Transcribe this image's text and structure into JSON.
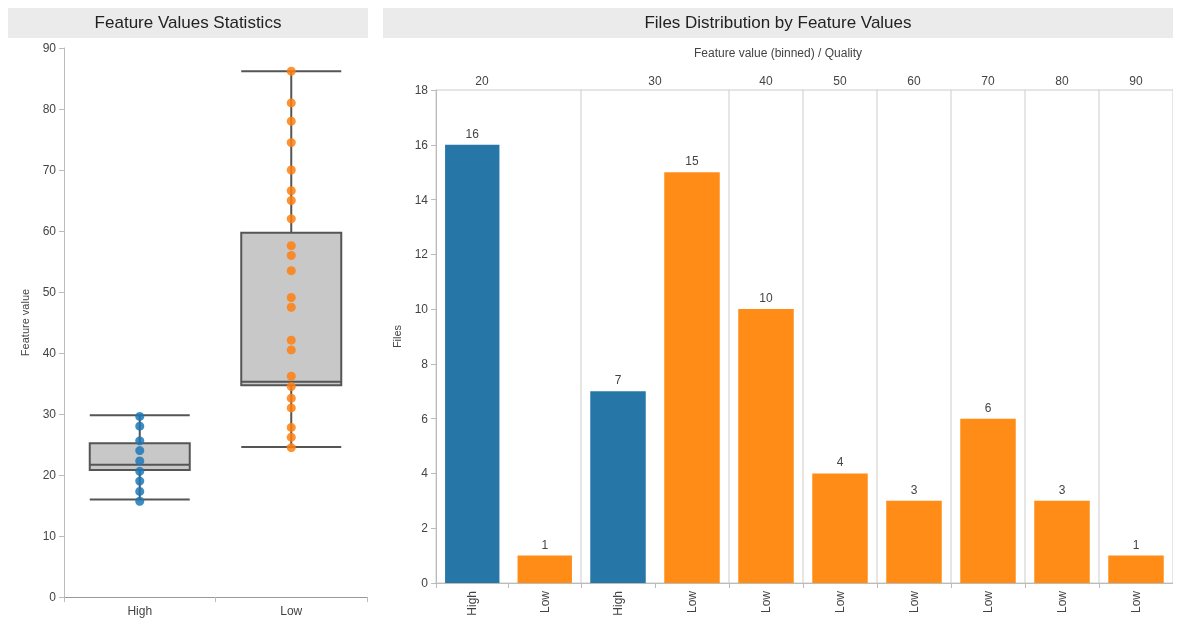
{
  "chart_data": [
    {
      "type": "box",
      "title": "Feature Values Statistics",
      "ylabel": "Feature value",
      "categories": [
        "High",
        "Low"
      ],
      "ylim": [
        0,
        90
      ],
      "yticks": [
        0,
        10,
        20,
        30,
        40,
        50,
        60,
        70,
        80,
        90
      ],
      "marker": "circle",
      "series": [
        {
          "type": "box",
          "color": "#c8c8c8",
          "boxes": [
            {
              "low": 16,
              "q1": 20.8,
              "median": 21.7,
              "q3": 25.2,
              "high": 29.8
            },
            {
              "low": 24.6,
              "q1": 34.7,
              "median": 35.3,
              "q3": 59.7,
              "high": 86.2
            }
          ]
        },
        {
          "type": "scatter",
          "color": "#1f77b4",
          "x": [
            "High",
            "High",
            "High",
            "High",
            "High",
            "High",
            "High",
            "High",
            "High"
          ],
          "values": [
            15.7,
            17.3,
            19,
            20.6,
            22.3,
            24,
            25.6,
            28,
            29.6
          ]
        },
        {
          "type": "scatter",
          "color": "#ff7f0e",
          "x": [
            "Low",
            "Low",
            "Low",
            "Low",
            "Low",
            "Low",
            "Low",
            "Low",
            "Low",
            "Low",
            "Low",
            "Low",
            "Low",
            "Low",
            "Low",
            "Low",
            "Low",
            "Low",
            "Low",
            "Low",
            "Low",
            "Low"
          ],
          "values": [
            24.5,
            26.2,
            27.8,
            31,
            32.6,
            34.5,
            36.2,
            40.5,
            42.1,
            47.5,
            49.1,
            53.5,
            56,
            57.6,
            62,
            65,
            66.6,
            70,
            74.5,
            78,
            81,
            86.2
          ]
        }
      ]
    },
    {
      "type": "other",
      "title": "Files Distribution by Feature Values",
      "subtitle": "Feature value (binned) / Quality"
    },
    {
      "type": "bar",
      "title": "20",
      "ylabel": "Files",
      "categories": [
        "High",
        "Low"
      ],
      "values": [
        16,
        1
      ],
      "colors": [
        "#2677a8",
        "#ff8c17"
      ],
      "ylim": [
        0,
        18
      ],
      "yticks": [
        0,
        2,
        4,
        6,
        8,
        10,
        12,
        14,
        16,
        18
      ],
      "data_labels": true
    },
    {
      "type": "bar",
      "title": "30",
      "categories": [
        "High",
        "Low"
      ],
      "values": [
        7,
        15
      ],
      "colors": [
        "#2677a8",
        "#ff8c17"
      ],
      "ylim": [
        0,
        18
      ],
      "yticks": [
        0,
        2,
        4,
        6,
        8,
        10,
        12,
        14,
        16,
        18
      ],
      "data_labels": true,
      "tick_labels": "x"
    },
    {
      "type": "bar",
      "title": "40",
      "categories": [
        "Low"
      ],
      "values": [
        10
      ],
      "colors": [
        "#ff8c17"
      ],
      "ylim": [
        0,
        18
      ],
      "yticks": [
        0,
        2,
        4,
        6,
        8,
        10,
        12,
        14,
        16,
        18
      ],
      "data_labels": true,
      "tick_labels": "x"
    },
    {
      "type": "bar",
      "title": "50",
      "categories": [
        "Low"
      ],
      "values": [
        4
      ],
      "colors": [
        "#ff8c17"
      ],
      "ylim": [
        0,
        18
      ],
      "yticks": [
        0,
        2,
        4,
        6,
        8,
        10,
        12,
        14,
        16,
        18
      ],
      "data_labels": true,
      "tick_labels": "x"
    },
    {
      "type": "bar",
      "title": "60",
      "categories": [
        "Low"
      ],
      "values": [
        3
      ],
      "colors": [
        "#ff8c17"
      ],
      "ylim": [
        0,
        18
      ],
      "yticks": [
        0,
        2,
        4,
        6,
        8,
        10,
        12,
        14,
        16,
        18
      ],
      "data_labels": true,
      "tick_labels": "x"
    },
    {
      "type": "bar",
      "title": "70",
      "categories": [
        "Low"
      ],
      "values": [
        6
      ],
      "colors": [
        "#ff8c17"
      ],
      "ylim": [
        0,
        18
      ],
      "yticks": [
        0,
        2,
        4,
        6,
        8,
        10,
        12,
        14,
        16,
        18
      ],
      "data_labels": true,
      "tick_labels": "x"
    },
    {
      "type": "bar",
      "title": "80",
      "categories": [
        "Low"
      ],
      "values": [
        3
      ],
      "colors": [
        "#ff8c17"
      ],
      "ylim": [
        0,
        18
      ],
      "yticks": [
        0,
        2,
        4,
        6,
        8,
        10,
        12,
        14,
        16,
        18
      ],
      "data_labels": true,
      "tick_labels": "x"
    },
    {
      "type": "bar",
      "title": "90",
      "categories": [
        "Low"
      ],
      "values": [
        1
      ],
      "colors": [
        "#ff8c17"
      ],
      "ylim": [
        0,
        18
      ],
      "yticks": [
        0,
        2,
        4,
        6,
        8,
        10,
        12,
        14,
        16,
        18
      ],
      "data_labels": true,
      "tick_labels": "x"
    }
  ]
}
